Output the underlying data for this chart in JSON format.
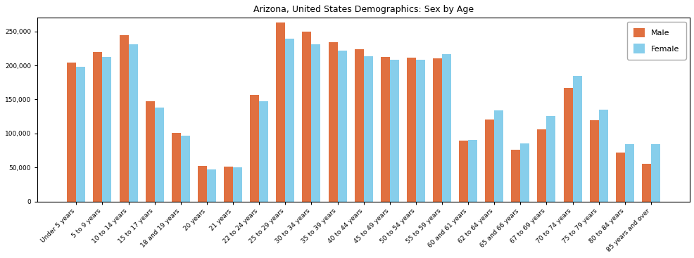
{
  "title": "Arizona, United States Demographics: Sex by Age",
  "categories": [
    "Under 5 years",
    "5 to 9 years",
    "10 to 14 years",
    "15 to 17 years",
    "18 and 19 years",
    "20 years",
    "21 years",
    "22 to 24 years",
    "25 to 29 years",
    "30 to 34 years",
    "35 to 39 years",
    "40 to 44 years",
    "45 to 49 years",
    "50 to 54 years",
    "55 to 59 years",
    "60 and 61 years",
    "62 to 64 years",
    "65 and 66 years",
    "67 to 69 years",
    "70 to 74 years",
    "75 to 79 years",
    "80 to 84 years",
    "85 years and over"
  ],
  "male": [
    204000,
    220000,
    244000,
    147000,
    101000,
    52000,
    51000,
    157000,
    263000,
    250000,
    234000,
    224000,
    212000,
    211000,
    210000,
    89000,
    120000,
    76000,
    106000,
    167000,
    119000,
    72000,
    55000
  ],
  "female": [
    198000,
    212000,
    231000,
    138000,
    97000,
    47000,
    50000,
    147000,
    239000,
    231000,
    222000,
    213000,
    208000,
    208000,
    217000,
    90000,
    134000,
    85000,
    126000,
    184000,
    135000,
    84000,
    84000
  ],
  "male_color": "#E07040",
  "female_color": "#87CEEB",
  "bar_width": 0.35,
  "ylim": [
    0,
    270000
  ],
  "yticks": [
    0,
    50000,
    100000,
    150000,
    200000,
    250000
  ],
  "ytick_labels": [
    "0",
    "50,000",
    "100,000",
    "150,000",
    "200,000",
    "250,000"
  ],
  "title_fontsize": 9,
  "tick_fontsize": 6.5,
  "legend_fontsize": 8,
  "background_color": "#ffffff"
}
